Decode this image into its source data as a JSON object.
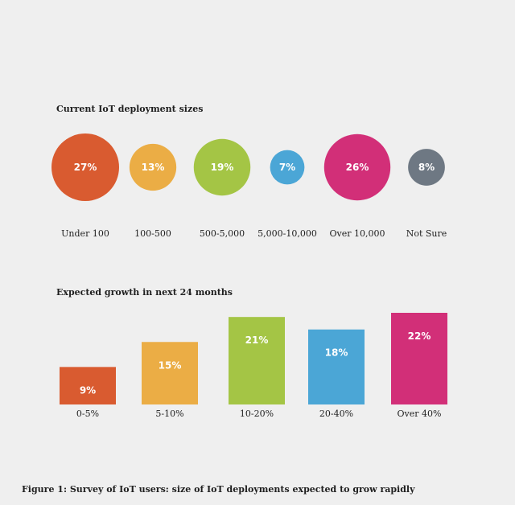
{
  "caption": "Figure 1: Survey of IoT users: size of IoT deployments expected to grow rapidly",
  "chart_data": [
    {
      "type": "bubble",
      "title": "Current IoT deployment sizes",
      "categories": [
        "Under 100",
        "100-500",
        "500-5,000",
        "5,000-10,000",
        "Over 10,000",
        "Not Sure"
      ],
      "values": [
        27,
        13,
        19,
        7,
        26,
        8
      ],
      "labels": [
        "27%",
        "13%",
        "19%",
        "7%",
        "26%",
        "8%"
      ],
      "colors": [
        "#d95b30",
        "#ebad45",
        "#a4c545",
        "#4ba6d6",
        "#d22f78",
        "#6e7883"
      ]
    },
    {
      "type": "bar",
      "title": "Expected growth in next 24 months",
      "categories": [
        "0-5%",
        "5-10%",
        "10-20%",
        "20-40%",
        "Over 40%"
      ],
      "values": [
        9,
        15,
        21,
        18,
        22
      ],
      "labels": [
        "9%",
        "15%",
        "21%",
        "18%",
        "22%"
      ],
      "colors": [
        "#d95b30",
        "#ebad45",
        "#a4c545",
        "#4ba6d6",
        "#d22f78"
      ],
      "ylim": [
        0,
        22
      ]
    }
  ]
}
